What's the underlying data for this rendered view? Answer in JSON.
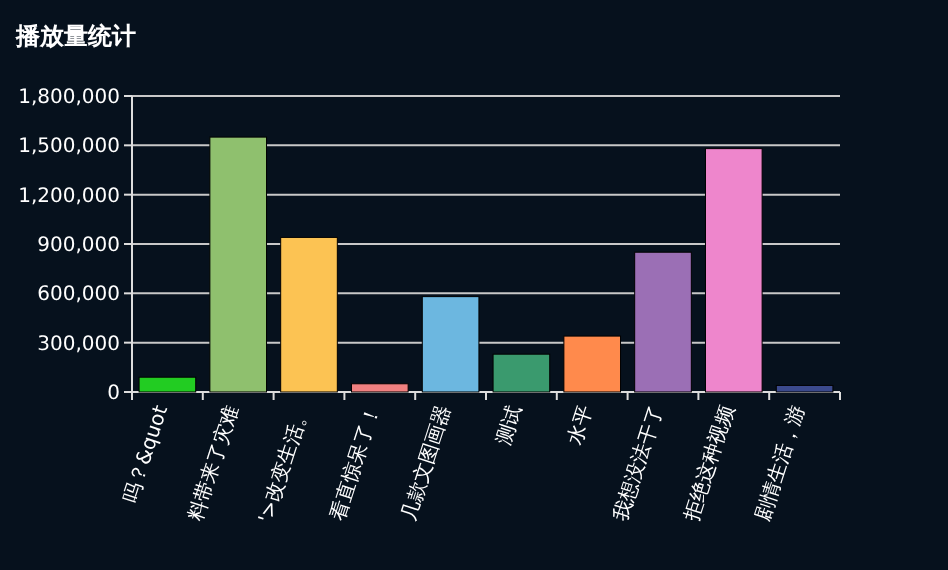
{
  "chart_data": {
    "type": "bar",
    "title": "播放量统计",
    "categories": [
      "吗？&quot",
      "料带来了灾难",
      "'>改变生活。",
      "看直惊呆了！",
      "几款文图画器",
      "测试",
      "水平",
      "我想没法干了",
      "拒绝这种视频",
      "剧情生活，游"
    ],
    "values": [
      90000,
      1550000,
      940000,
      50000,
      580000,
      230000,
      340000,
      850000,
      1480000,
      40000
    ],
    "colors": [
      "#22cc22",
      "#8fc06e",
      "#fcc353",
      "#f08080",
      "#6cb7e0",
      "#3a9a6e",
      "#ff8a4c",
      "#9b6fb5",
      "#ee86cc",
      "#3b4a8c"
    ],
    "ylim": [
      0,
      1800000
    ],
    "yticks": [
      0,
      {
        "value": 300000,
        "label": "300,000"
      },
      {
        "value": 600000,
        "label": "600,000"
      },
      {
        "value": 900000,
        "label": "900,000"
      },
      {
        "value": 1200000,
        "label": "1,200,000"
      },
      {
        "value": 1500000,
        "label": "1,500,000"
      },
      {
        "value": 1800000,
        "label": "1,800,000"
      }
    ],
    "grid": "y"
  }
}
